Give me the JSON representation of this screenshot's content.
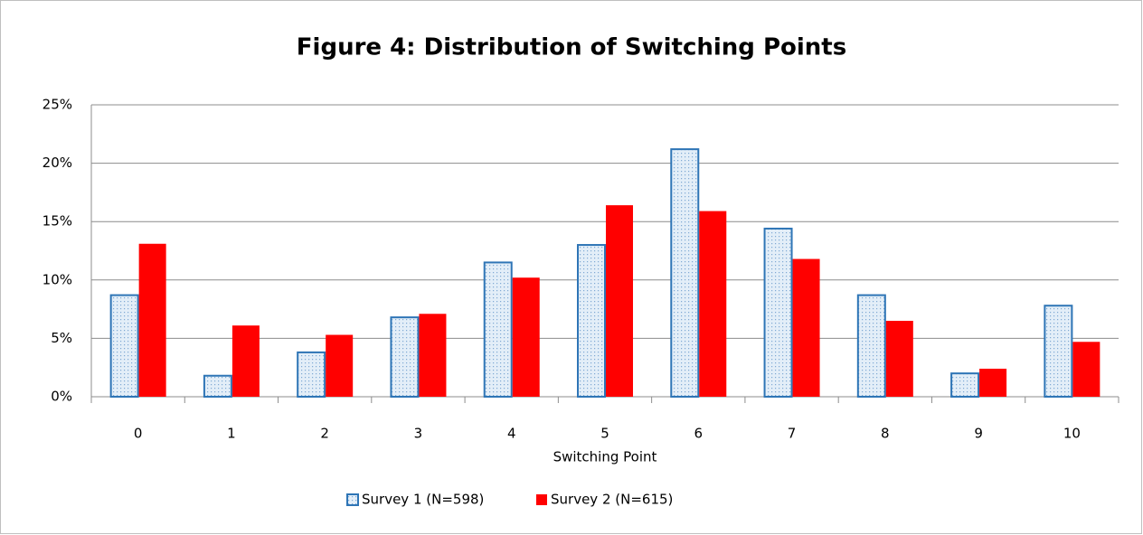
{
  "chart_data": {
    "type": "bar",
    "title": "Figure 4: Distribution of Switching Points",
    "x_label": "Switching Point",
    "categories": [
      "0",
      "1",
      "2",
      "3",
      "4",
      "5",
      "6",
      "7",
      "8",
      "9",
      "10"
    ],
    "series": [
      {
        "name": "Survey 1 (N=598)",
        "color": "#2e75b6",
        "values": [
          8.7,
          1.8,
          3.8,
          6.8,
          11.5,
          13.0,
          21.2,
          14.4,
          8.7,
          2.0,
          7.8
        ]
      },
      {
        "name": "Survey 2 (N=615)",
        "color": "#ff0000",
        "values": [
          13.1,
          6.1,
          5.3,
          7.1,
          10.2,
          16.4,
          15.9,
          11.8,
          6.5,
          2.4,
          4.7
        ]
      }
    ],
    "ylim": [
      0,
      25
    ],
    "yticks": [
      {
        "value": 0,
        "label": "0%"
      },
      {
        "value": 5,
        "label": "5%"
      },
      {
        "value": 10,
        "label": "10%"
      },
      {
        "value": 15,
        "label": "15%"
      },
      {
        "value": 20,
        "label": "20%"
      },
      {
        "value": 25,
        "label": "25%"
      }
    ],
    "grid": true,
    "legend": "bottom"
  }
}
